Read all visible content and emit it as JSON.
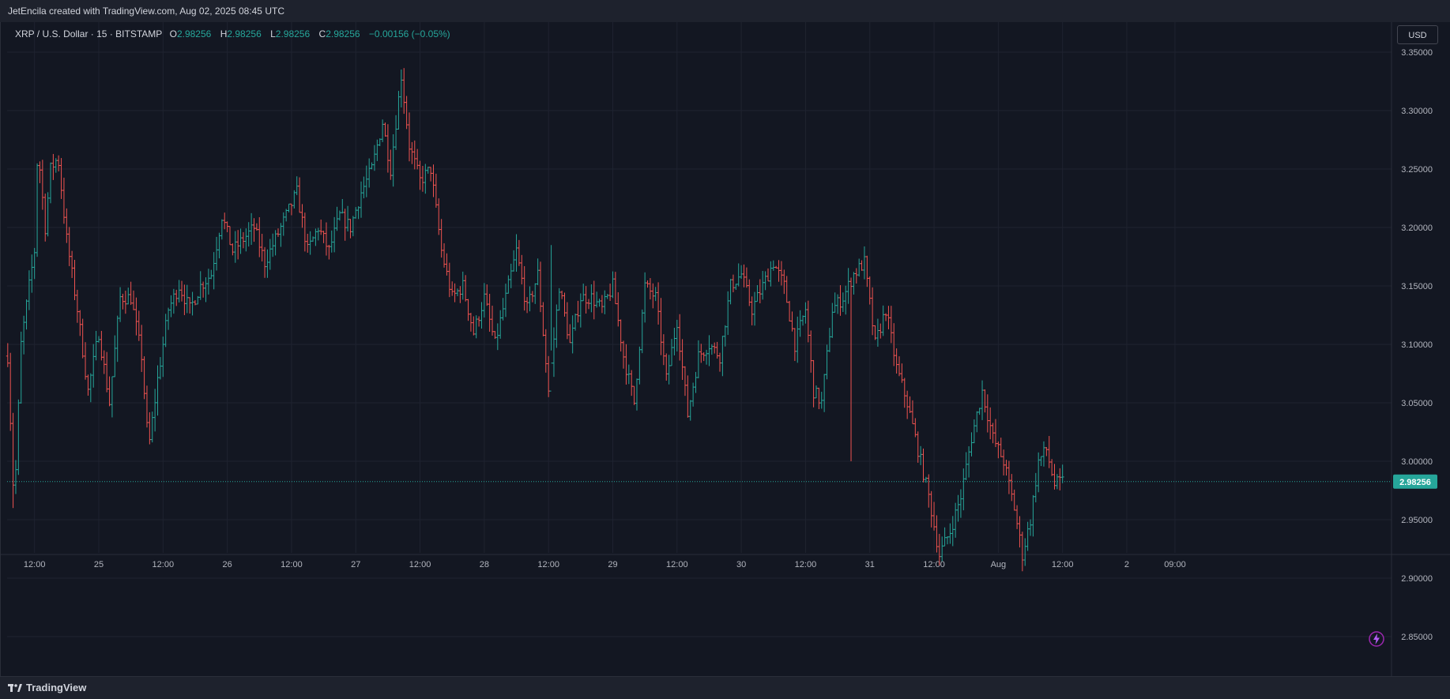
{
  "header": {
    "credit": "JetEncila created with TradingView.com, Aug 02, 2025 08:45 UTC"
  },
  "legend": {
    "symbol": "XRP / U.S. Dollar · 15 · BITSTAMP",
    "open_label": "O",
    "open": "2.98256",
    "high_label": "H",
    "high": "2.98256",
    "low_label": "L",
    "low": "2.98256",
    "close_label": "C",
    "close": "2.98256",
    "change": "−0.00156 (−0.05%)"
  },
  "currency_button": "USD",
  "footer": {
    "brand": "TradingView"
  },
  "icons": {
    "logo": "tradingview-logo-icon",
    "flash": "lightning-icon"
  },
  "colors": {
    "up": "#26a69a",
    "down": "#ef5350",
    "background": "#131722",
    "grid": "#1f2330",
    "text": "#b2b5be",
    "last_price": "#26a69a"
  },
  "chart_data": {
    "type": "ohlc",
    "symbol": "XRPUSD",
    "exchange": "BITSTAMP",
    "interval": "15",
    "grid": true,
    "ylim": [
      2.84,
      3.37
    ],
    "x_range_hours": [
      0,
      191
    ],
    "yticks": [
      "3.35000",
      "3.30000",
      "3.25000",
      "3.20000",
      "3.15000",
      "3.10000",
      "3.05000",
      "3.00000",
      "2.95000",
      "2.90000",
      "2.85000"
    ],
    "ytick_values": [
      3.35,
      3.3,
      3.25,
      3.2,
      3.15,
      3.1,
      3.05,
      3.0,
      2.95,
      2.9,
      2.85
    ],
    "xticks": [
      {
        "label": "12:00",
        "hours": 5
      },
      {
        "label": "25",
        "hours": 17
      },
      {
        "label": "12:00",
        "hours": 29
      },
      {
        "label": "26",
        "hours": 41
      },
      {
        "label": "12:00",
        "hours": 53
      },
      {
        "label": "27",
        "hours": 65
      },
      {
        "label": "12:00",
        "hours": 77
      },
      {
        "label": "28",
        "hours": 89
      },
      {
        "label": "12:00",
        "hours": 101
      },
      {
        "label": "29",
        "hours": 113
      },
      {
        "label": "12:00",
        "hours": 125
      },
      {
        "label": "30",
        "hours": 137
      },
      {
        "label": "12:00",
        "hours": 149
      },
      {
        "label": "31",
        "hours": 161
      },
      {
        "label": "12:00",
        "hours": 173
      },
      {
        "label": "Aug",
        "hours": 185
      },
      {
        "label": "12:00",
        "hours": 197
      },
      {
        "label": "2",
        "hours": 209
      },
      {
        "label": "09:00",
        "hours": 218
      }
    ],
    "last_price": 2.98256,
    "last_price_label": "2.98256",
    "anchors": [
      [
        0,
        3.09
      ],
      [
        1.2,
        2.96
      ],
      [
        2.5,
        3.1
      ],
      [
        4,
        3.15
      ],
      [
        5,
        3.18
      ],
      [
        5.6,
        3.27
      ],
      [
        7,
        3.2
      ],
      [
        8,
        3.25
      ],
      [
        9.4,
        3.26
      ],
      [
        11,
        3.19
      ],
      [
        13,
        3.13
      ],
      [
        15,
        3.06
      ],
      [
        17,
        3.11
      ],
      [
        19,
        3.05
      ],
      [
        21,
        3.14
      ],
      [
        23,
        3.14
      ],
      [
        25,
        3.09
      ],
      [
        26.3,
        3.01
      ],
      [
        28,
        3.07
      ],
      [
        30,
        3.13
      ],
      [
        32,
        3.15
      ],
      [
        34,
        3.13
      ],
      [
        36,
        3.15
      ],
      [
        38,
        3.16
      ],
      [
        40,
        3.21
      ],
      [
        42,
        3.18
      ],
      [
        44,
        3.19
      ],
      [
        46,
        3.2
      ],
      [
        48,
        3.17
      ],
      [
        50,
        3.19
      ],
      [
        52,
        3.21
      ],
      [
        54,
        3.23
      ],
      [
        56,
        3.18
      ],
      [
        58,
        3.2
      ],
      [
        60,
        3.18
      ],
      [
        62,
        3.21
      ],
      [
        64,
        3.2
      ],
      [
        66,
        3.23
      ],
      [
        68,
        3.25
      ],
      [
        70,
        3.29
      ],
      [
        71.5,
        3.25
      ],
      [
        73.5,
        3.33
      ],
      [
        75,
        3.27
      ],
      [
        77,
        3.24
      ],
      [
        79,
        3.25
      ],
      [
        81,
        3.18
      ],
      [
        83,
        3.14
      ],
      [
        85,
        3.15
      ],
      [
        87,
        3.11
      ],
      [
        89,
        3.14
      ],
      [
        91,
        3.1
      ],
      [
        93,
        3.14
      ],
      [
        95,
        3.18
      ],
      [
        97,
        3.13
      ],
      [
        99,
        3.16
      ],
      [
        101,
        3.06
      ],
      [
        103,
        3.15
      ],
      [
        105,
        3.1
      ],
      [
        107,
        3.14
      ],
      [
        109,
        3.14
      ],
      [
        111,
        3.13
      ],
      [
        113,
        3.15
      ],
      [
        115,
        3.09
      ],
      [
        117,
        3.05
      ],
      [
        119,
        3.15
      ],
      [
        121,
        3.14
      ],
      [
        123,
        3.07
      ],
      [
        125,
        3.12
      ],
      [
        127,
        3.04
      ],
      [
        129,
        3.09
      ],
      [
        131,
        3.1
      ],
      [
        133,
        3.09
      ],
      [
        135,
        3.15
      ],
      [
        137,
        3.16
      ],
      [
        139,
        3.13
      ],
      [
        141,
        3.15
      ],
      [
        143,
        3.17
      ],
      [
        145,
        3.15
      ],
      [
        147,
        3.1
      ],
      [
        149,
        3.13
      ],
      [
        150.5,
        3.06
      ],
      [
        152,
        3.05
      ],
      [
        154,
        3.13
      ],
      [
        156,
        3.14
      ],
      [
        158,
        3.16
      ],
      [
        160,
        3.17
      ],
      [
        162,
        3.1
      ],
      [
        164,
        3.13
      ],
      [
        166,
        3.08
      ],
      [
        168,
        3.05
      ],
      [
        170,
        3.01
      ],
      [
        172,
        2.97
      ],
      [
        174,
        2.92
      ],
      [
        176,
        2.94
      ],
      [
        178,
        2.97
      ],
      [
        180,
        3.02
      ],
      [
        182,
        3.06
      ],
      [
        184,
        3.02
      ],
      [
        186,
        3.0
      ],
      [
        188,
        2.96
      ],
      [
        189.5,
        2.92
      ],
      [
        191,
        2.95
      ],
      [
        192.5,
        3.0
      ],
      [
        194,
        3.01
      ],
      [
        195.5,
        2.98
      ],
      [
        197,
        2.98256
      ]
    ]
  }
}
